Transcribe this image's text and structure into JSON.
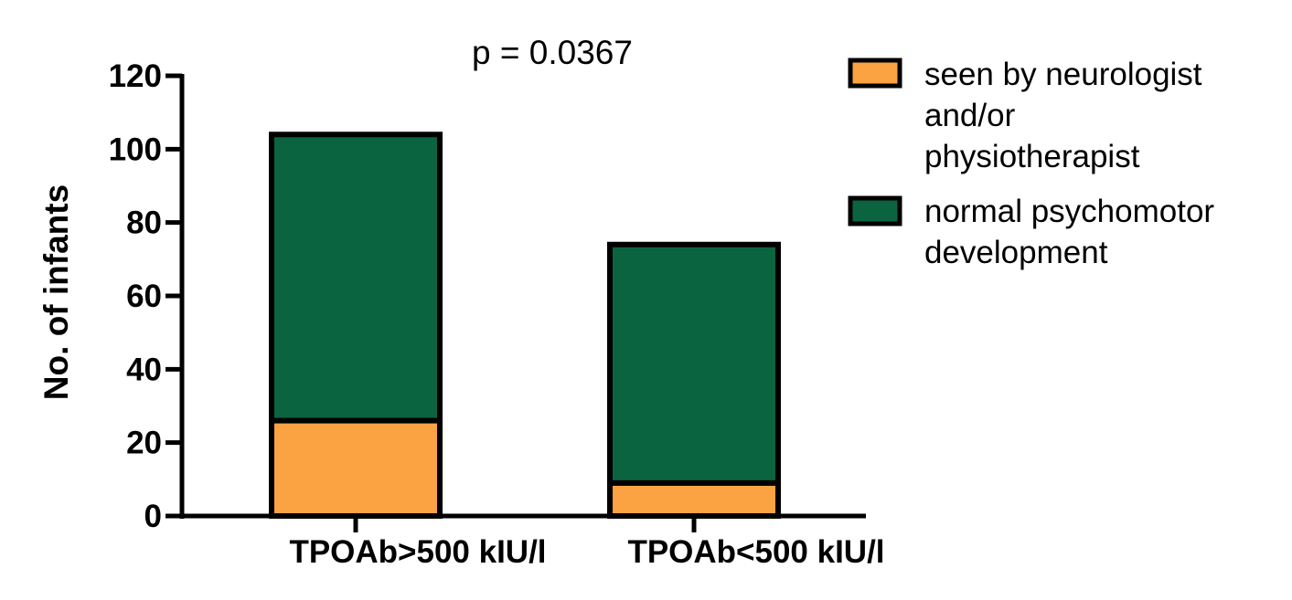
{
  "chart_data": {
    "type": "bar",
    "stacked": true,
    "title": "p = 0.0367",
    "xlabel": "",
    "ylabel": "No. of infants",
    "ylim": [
      0,
      120
    ],
    "yticks": [
      "0",
      "20",
      "40",
      "60",
      "80",
      "100",
      "120"
    ],
    "categories": [
      "TPOAb>500 kIU/l",
      "TPOAb<500 kIU/l"
    ],
    "series": [
      {
        "name": "seen by neurologist and/or physiotherapist",
        "legend_lines": [
          "seen by neurologist",
          "and/or",
          "physiotherapist"
        ],
        "color": "#fba243",
        "values": [
          26,
          9
        ]
      },
      {
        "name": "normal psychomotor development",
        "legend_lines": [
          "normal psychomotor",
          "development"
        ],
        "color": "#0b6440",
        "values": [
          78,
          65
        ]
      }
    ],
    "legend_position": "top-right"
  }
}
